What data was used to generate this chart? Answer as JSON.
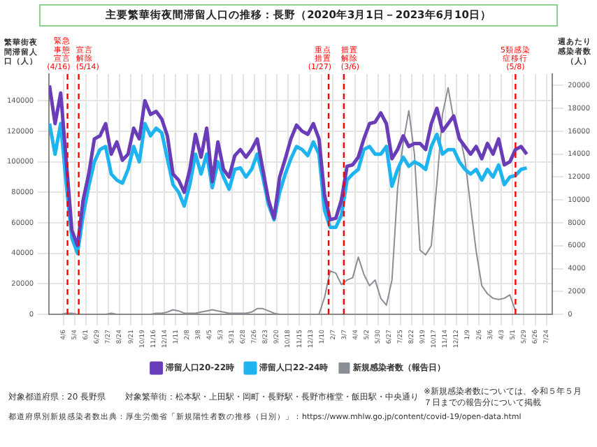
{
  "chart_data": {
    "type": "line",
    "title": "主要繁華街夜間滞留人口の推移：長野（2020年3月1日－2023年6月10日）",
    "ylabel": "繁華街夜間滞留人口（人）",
    "y2label": "週あたり感染者数（人）",
    "x": [
      "2020-03-02",
      "2020-03-16",
      "2020-03-30",
      "2020-04-13",
      "2020-04-27",
      "2020-05-11",
      "2020-05-25",
      "2020-06-08",
      "2020-06-22",
      "2020-07-06",
      "2020-07-20",
      "2020-08-03",
      "2020-08-17",
      "2020-08-31",
      "2020-09-14",
      "2020-09-28",
      "2020-10-12",
      "2020-10-26",
      "2020-11-09",
      "2020-11-23",
      "2020-12-07",
      "2020-12-21",
      "2021-01-04",
      "2021-01-18",
      "2021-02-01",
      "2021-02-15",
      "2021-03-01",
      "2021-03-15",
      "2021-03-29",
      "2021-04-12",
      "2021-04-26",
      "2021-05-10",
      "2021-05-24",
      "2021-06-07",
      "2021-06-21",
      "2021-07-05",
      "2021-07-19",
      "2021-08-02",
      "2021-08-16",
      "2021-08-30",
      "2021-09-13",
      "2021-09-27",
      "2021-10-11",
      "2021-10-25",
      "2021-11-08",
      "2021-11-22",
      "2021-12-06",
      "2021-12-20",
      "2022-01-03",
      "2022-01-17",
      "2022-01-31",
      "2022-02-14",
      "2022-02-28",
      "2022-03-14",
      "2022-03-28",
      "2022-04-11",
      "2022-04-25",
      "2022-05-09",
      "2022-05-23",
      "2022-06-06",
      "2022-06-20",
      "2022-07-04",
      "2022-07-18",
      "2022-08-01",
      "2022-08-15",
      "2022-08-29",
      "2022-09-12",
      "2022-09-26",
      "2022-10-10",
      "2022-10-24",
      "2022-11-07",
      "2022-11-21",
      "2022-12-05",
      "2022-12-19",
      "2023-01-02",
      "2023-01-16",
      "2023-01-30",
      "2023-02-13",
      "2023-02-27",
      "2023-03-13",
      "2023-03-27",
      "2023-04-10",
      "2023-04-24",
      "2023-05-08",
      "2023-05-22",
      "2023-06-05"
    ],
    "series": [
      {
        "name": "滞留人口20-22時",
        "color": "#6a3db8",
        "values": [
          150000,
          125000,
          145000,
          100000,
          55000,
          45000,
          75000,
          92000,
          115000,
          117000,
          125000,
          105000,
          113000,
          101000,
          105000,
          122000,
          115000,
          140000,
          131000,
          133000,
          128000,
          117000,
          92000,
          88000,
          80000,
          95000,
          118000,
          103000,
          122000,
          87000,
          113000,
          95000,
          90000,
          104000,
          108000,
          103000,
          108000,
          115000,
          95000,
          75000,
          63000,
          90000,
          102000,
          115000,
          124000,
          120000,
          118000,
          125000,
          115000,
          78000,
          62000,
          63000,
          75000,
          97000,
          98000,
          103000,
          115000,
          125000,
          126000,
          132000,
          125000,
          102000,
          108000,
          117000,
          110000,
          112000,
          112000,
          108000,
          125000,
          135000,
          120000,
          125000,
          130000,
          115000,
          110000,
          105000,
          110000,
          102000,
          112000,
          105000,
          115000,
          98000,
          100000,
          108000,
          110000,
          105000
        ]
      },
      {
        "name": "滞留人口22-24時",
        "color": "#1eb4ef",
        "values": [
          125000,
          105000,
          125000,
          85000,
          50000,
          40000,
          65000,
          84000,
          100000,
          108000,
          110000,
          92000,
          88000,
          86000,
          95000,
          110000,
          100000,
          125000,
          117000,
          122000,
          119000,
          102000,
          85000,
          80000,
          71000,
          85000,
          105000,
          92000,
          105000,
          83000,
          100000,
          90000,
          82000,
          95000,
          96000,
          90000,
          95000,
          105000,
          90000,
          72000,
          62000,
          80000,
          92000,
          102000,
          110000,
          108000,
          104000,
          113000,
          105000,
          68000,
          57000,
          57000,
          65000,
          88000,
          92000,
          95000,
          108000,
          110000,
          105000,
          105000,
          110000,
          84000,
          95000,
          103000,
          97000,
          100000,
          98000,
          95000,
          110000,
          118000,
          105000,
          108000,
          108000,
          100000,
          95000,
          92000,
          95000,
          88000,
          95000,
          90000,
          98000,
          85000,
          90000,
          91000,
          95000,
          96000
        ]
      },
      {
        "name": "新規感染者数（報告日）",
        "color": "#8a8f96",
        "axis": "y2",
        "values": [
          0,
          0,
          0,
          100,
          100,
          0,
          0,
          0,
          0,
          0,
          0,
          100,
          0,
          0,
          0,
          0,
          0,
          0,
          0,
          100,
          100,
          200,
          400,
          300,
          100,
          100,
          100,
          200,
          300,
          400,
          300,
          200,
          100,
          100,
          100,
          100,
          200,
          500,
          500,
          300,
          100,
          0,
          0,
          0,
          0,
          0,
          0,
          0,
          0,
          1500,
          3800,
          3600,
          2600,
          3000,
          3200,
          5000,
          3500,
          2500,
          3000,
          1400,
          800,
          3000,
          11000,
          15000,
          17800,
          14000,
          5600,
          5200,
          6000,
          11500,
          17500,
          19800,
          17000,
          15800,
          13500,
          9500,
          5500,
          2500,
          1800,
          1400,
          1300,
          1400,
          1700,
          300,
          null,
          null
        ]
      }
    ],
    "xlim": [
      "2020-03-01",
      "2023-08-08"
    ],
    "xticks": [
      {
        "value": "2020-04-06",
        "label": "4/6"
      },
      {
        "value": "2020-05-04",
        "label": "5/4"
      },
      {
        "value": "2020-06-01",
        "label": "6/1"
      },
      {
        "value": "2020-06-29",
        "label": "6/29"
      },
      {
        "value": "2020-07-27",
        "label": "7/27"
      },
      {
        "value": "2020-08-24",
        "label": "8/24"
      },
      {
        "value": "2020-09-21",
        "label": "9/21"
      },
      {
        "value": "2020-10-19",
        "label": "10/19"
      },
      {
        "value": "2020-11-16",
        "label": "11/16"
      },
      {
        "value": "2020-12-14",
        "label": "12/14"
      },
      {
        "value": "2021-01-11",
        "label": "1/11"
      },
      {
        "value": "2021-02-08",
        "label": "2/8"
      },
      {
        "value": "2021-03-08",
        "label": "3/8"
      },
      {
        "value": "2021-04-05",
        "label": "4/5"
      },
      {
        "value": "2021-05-03",
        "label": "5/3"
      },
      {
        "value": "2021-05-31",
        "label": "5/31"
      },
      {
        "value": "2021-06-28",
        "label": "6/28"
      },
      {
        "value": "2021-07-26",
        "label": "7/26"
      },
      {
        "value": "2021-08-23",
        "label": "8/23"
      },
      {
        "value": "2021-09-20",
        "label": "9/20"
      },
      {
        "value": "2021-10-18",
        "label": "10/18"
      },
      {
        "value": "2021-11-15",
        "label": "11/15"
      },
      {
        "value": "2021-12-13",
        "label": "12/13"
      },
      {
        "value": "2022-01-10",
        "label": "1/10"
      },
      {
        "value": "2022-02-07",
        "label": "2/7"
      },
      {
        "value": "2022-03-07",
        "label": "3/7"
      },
      {
        "value": "2022-04-04",
        "label": "4/4"
      },
      {
        "value": "2022-05-02",
        "label": "5/2"
      },
      {
        "value": "2022-05-30",
        "label": "5/30"
      },
      {
        "value": "2022-06-27",
        "label": "6/27"
      },
      {
        "value": "2022-07-25",
        "label": "7/25"
      },
      {
        "value": "2022-08-22",
        "label": "8/22"
      },
      {
        "value": "2022-09-19",
        "label": "9/19"
      },
      {
        "value": "2022-10-17",
        "label": "10/17"
      },
      {
        "value": "2022-11-14",
        "label": "11/14"
      },
      {
        "value": "2022-12-12",
        "label": "12/12"
      },
      {
        "value": "2023-01-09",
        "label": "1/9"
      },
      {
        "value": "2023-02-06",
        "label": "2/6"
      },
      {
        "value": "2023-03-06",
        "label": "3/6"
      },
      {
        "value": "2023-04-03",
        "label": "4/3"
      },
      {
        "value": "2023-05-01",
        "label": "5/1"
      },
      {
        "value": "2023-05-29",
        "label": "5/29"
      },
      {
        "value": "2023-06-26",
        "label": "6/26"
      },
      {
        "value": "2023-07-24",
        "label": "7/24"
      }
    ],
    "ylim": [
      0,
      157500
    ],
    "yticks": [
      0,
      20000,
      40000,
      60000,
      80000,
      100000,
      120000,
      140000
    ],
    "y2lim": [
      0,
      21000
    ],
    "y2ticks": [
      0,
      2000,
      4000,
      6000,
      8000,
      10000,
      12000,
      14000,
      16000,
      18000,
      20000
    ],
    "ref_lines": [
      {
        "axis": "x",
        "value": "2020-04-16",
        "label": "緊急事態宣言(4/16)",
        "color": "#ff0000",
        "line_style": "dashed"
      },
      {
        "axis": "x",
        "value": "2020-05-14",
        "label": "宣言解除(5/14)",
        "color": "#ff0000",
        "line_style": "dashed"
      },
      {
        "axis": "x",
        "value": "2022-01-27",
        "label": "重点措置(1/27)",
        "color": "#ff0000",
        "line_style": "dashed"
      },
      {
        "axis": "x",
        "value": "2022-03-06",
        "label": "措置解除(3/6)",
        "color": "#ff0000",
        "line_style": "dashed"
      },
      {
        "axis": "x",
        "value": "2023-05-08",
        "label": "5類感染症移行(5/8)",
        "color": "#ff0000",
        "line_style": "dashed"
      }
    ],
    "grid": true,
    "legend": "bottom",
    "marker": "none",
    "line_style": "solid",
    "annotations": [
      "※新規感染者数については、令和５年５月７日までの報告分について掲載",
      "対象都道府県：20 長野県",
      "対象繁華街：松本駅・上田駅・岡町・長野駅・長野市権堂・飯田駅・中央通り",
      "都道府県別新規感染者数出典：厚生労働省「新規陽性者数の推移（日別）」：https://www.mhlw.go.jp/content/covid-19/open-data.html"
    ]
  }
}
